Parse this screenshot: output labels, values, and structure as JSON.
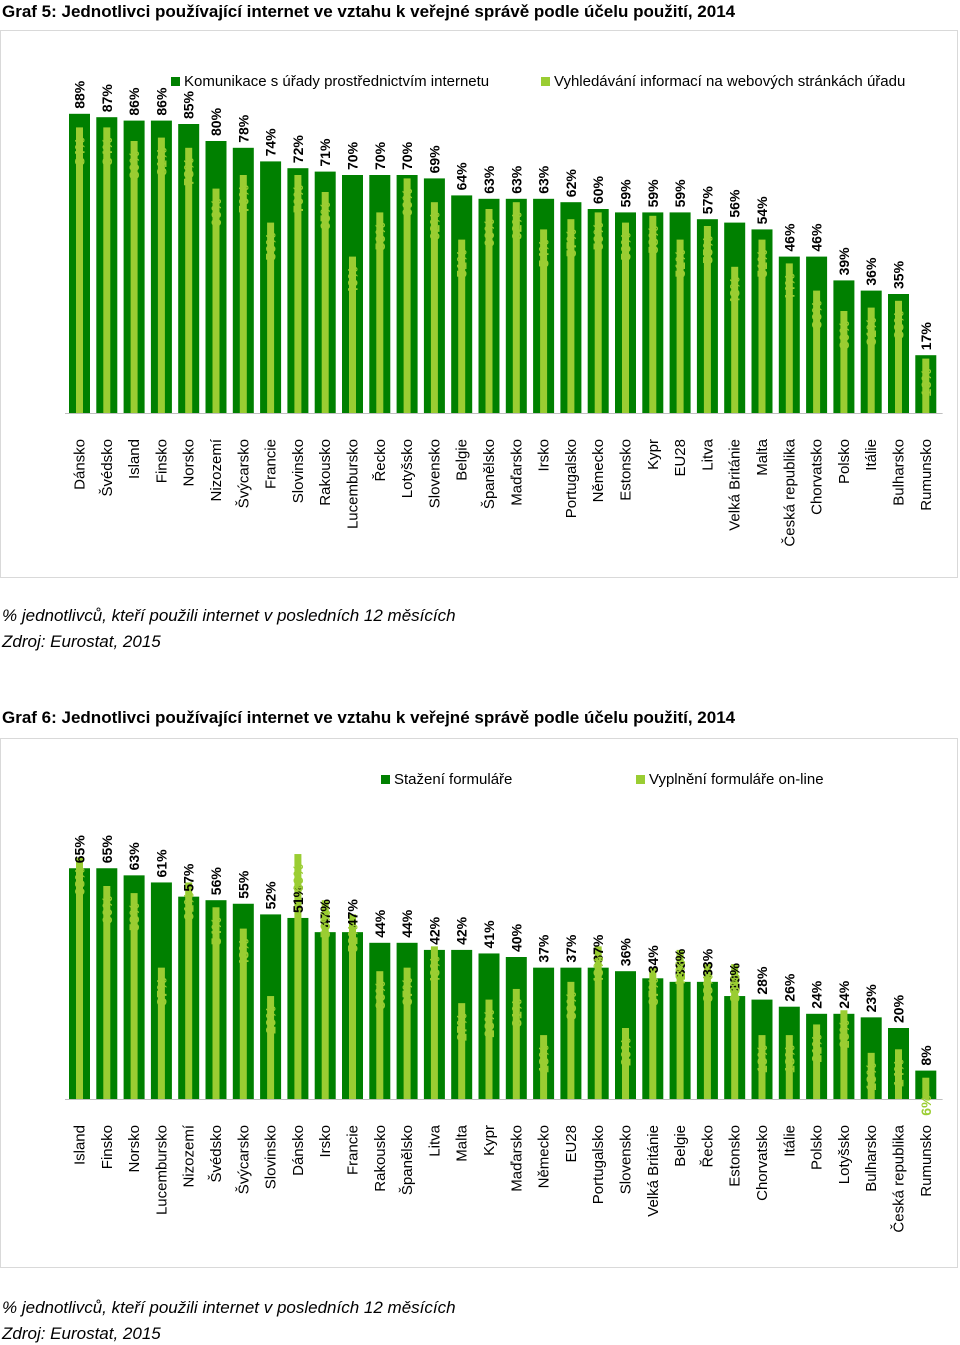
{
  "colors": {
    "primary": "#008000",
    "secondary": "#9ACD32"
  },
  "chart_data": [
    {
      "type": "bar",
      "title": "Graf 5: Jednotlivci používající internet ve vztahu k veřejné správě podle účelu použití, 2014",
      "note": "% jednotlivců, kteří použili internet v posledních 12 měsících",
      "source": "Zdroj: Eurostat, 2015",
      "ylim": [
        0,
        100
      ],
      "legend_position": "top",
      "categories": [
        "Dánsko",
        "Švédsko",
        "Island",
        "Finsko",
        "Norsko",
        "Nizozemí",
        "Švýcarsko",
        "Francie",
        "Slovinsko",
        "Rakousko",
        "Lucembursko",
        "Řecko",
        "Lotyšsko",
        "Slovensko",
        "Belgie",
        "Španělsko",
        "Maďarsko",
        "Irsko",
        "Portugalsko",
        "Německo",
        "Estonsko",
        "Kypr",
        "EU28",
        "Litva",
        "Velká Británie",
        "Malta",
        "Česká republika",
        "Chorvatsko",
        "Polsko",
        "Itálie",
        "Bulharsko",
        "Rumunsko"
      ],
      "series": [
        {
          "name": "Komunikace s úřady prostřednictvím internetu",
          "values": [
            88,
            87,
            86,
            86,
            85,
            80,
            78,
            74,
            72,
            71,
            70,
            70,
            70,
            69,
            64,
            63,
            63,
            63,
            62,
            60,
            59,
            59,
            59,
            57,
            56,
            54,
            46,
            46,
            39,
            36,
            35,
            17
          ]
        },
        {
          "name": "Vyhledávání informací na webových stránkách úřadu",
          "values": [
            84,
            84,
            80,
            81,
            78,
            66,
            70,
            56,
            70,
            65,
            46,
            59,
            69,
            62,
            51,
            60,
            62,
            54,
            57,
            59,
            56,
            58,
            51,
            55,
            43,
            51,
            44,
            36,
            30,
            31,
            33,
            16
          ]
        }
      ]
    },
    {
      "type": "bar",
      "title": "Graf 6: Jednotlivci používající internet ve vztahu k veřejné správě podle účelu použití, 2014",
      "note": "% jednotlivců, kteří použili internet v posledních 12 měsících",
      "source": "Zdroj: Eurostat, 2015",
      "ylim": [
        0,
        75
      ],
      "legend_position": "top",
      "categories": [
        "Island",
        "Finsko",
        "Norsko",
        "Lucembursko",
        "Nizozemí",
        "Švédsko",
        "Švýcarsko",
        "Slovinsko",
        "Dánsko",
        "Irsko",
        "Francie",
        "Rakousko",
        "Španělsko",
        "Litva",
        "Malta",
        "Kypr",
        "Maďarsko",
        "Německo",
        "EU28",
        "Portugalsko",
        "Slovensko",
        "Velká Británie",
        "Belgie",
        "Řecko",
        "Estonsko",
        "Chorvatsko",
        "Itálie",
        "Polsko",
        "Lotyšsko",
        "Bulharsko",
        "Česká republika",
        "Rumunsko"
      ],
      "series": [
        {
          "name": "Stažení formuláře",
          "values": [
            65,
            65,
            63,
            61,
            57,
            56,
            55,
            52,
            51,
            47,
            47,
            44,
            44,
            42,
            42,
            41,
            40,
            37,
            37,
            37,
            36,
            34,
            33,
            33,
            29,
            28,
            26,
            24,
            24,
            23,
            20,
            8
          ]
        },
        {
          "name": "Vyplnění formuláře on-line",
          "values": [
            68,
            60,
            58,
            37,
            61,
            54,
            48,
            29,
            69,
            56,
            52,
            36,
            37,
            43,
            27,
            28,
            31,
            18,
            33,
            43,
            20,
            37,
            42,
            38,
            38,
            18,
            18,
            21,
            25,
            13,
            14,
            6
          ]
        }
      ]
    }
  ]
}
